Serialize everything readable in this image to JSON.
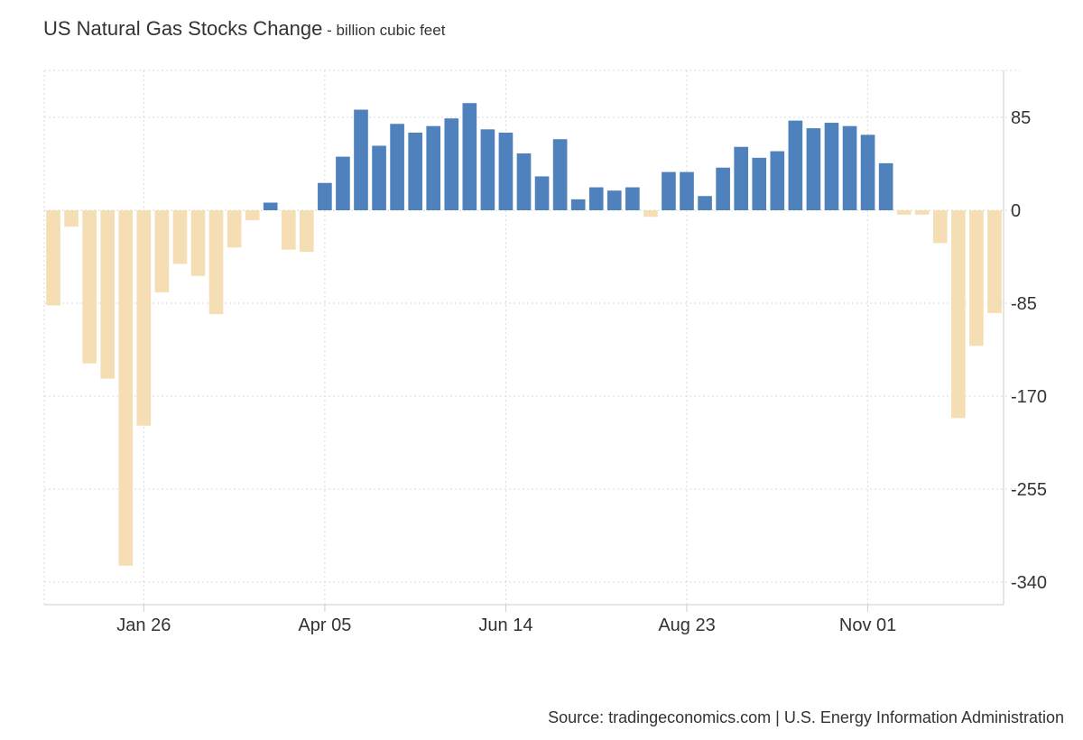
{
  "header": {
    "title": "US Natural Gas Stocks Change",
    "subtitle": " - billion cubic feet"
  },
  "footer": {
    "source": "Source: tradingeconomics.com | U.S. Energy Information Administration"
  },
  "chart_data": {
    "type": "bar",
    "title": "US Natural Gas Stocks Change",
    "subtitle": "billion cubic feet",
    "ylabel": "",
    "xlabel": "",
    "ylim": [
      -350,
      130
    ],
    "yticks": [
      85,
      0,
      -85,
      -170,
      -255,
      -340
    ],
    "xtick_labels": [
      "Jan 26",
      "Apr 05",
      "Jun 14",
      "Aug 23",
      "Nov 01"
    ],
    "xtick_bar_index": [
      5,
      15,
      25,
      35,
      45
    ],
    "grid": true,
    "colors": {
      "positive": "#4f81bd",
      "negative": "#f5deb3"
    },
    "values": [
      -87,
      -15,
      -140,
      -154,
      -325,
      -197,
      -75,
      -49,
      -60,
      -95,
      -34,
      -9,
      7,
      -36,
      -38,
      25,
      49,
      92,
      59,
      79,
      71,
      77,
      84,
      98,
      74,
      71,
      52,
      31,
      65,
      10,
      21,
      18,
      21,
      -6,
      35,
      35,
      13,
      39,
      58,
      48,
      54,
      82,
      75,
      80,
      77,
      69,
      43,
      -4,
      -4,
      -30,
      -190,
      -124,
      -94
    ]
  }
}
